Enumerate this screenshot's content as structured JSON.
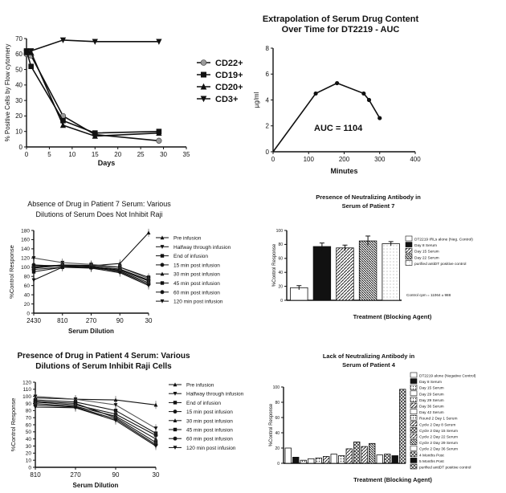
{
  "chart_data": [
    {
      "id": "flow",
      "type": "line",
      "title": "",
      "xlabel": "Days",
      "ylabel": "% Positive Cells by Flow cytomery",
      "xlim": [
        0,
        35
      ],
      "ylim": [
        0,
        70
      ],
      "xticks": [
        "0",
        "5",
        "10",
        "15",
        "20",
        "25",
        "30",
        "35"
      ],
      "yticks": [
        "0",
        "10",
        "20",
        "30",
        "40",
        "50",
        "60",
        "70"
      ],
      "series": [
        {
          "name": "CD22+",
          "marker": "circle",
          "color": "#9a9a9a",
          "x": [
            0,
            1,
            8,
            15,
            29
          ],
          "y": [
            60,
            59,
            20,
            8,
            4
          ]
        },
        {
          "name": "CD19+",
          "marker": "square",
          "color": "#111111",
          "x": [
            0,
            1,
            8,
            15,
            29
          ],
          "y": [
            62,
            52,
            17,
            9,
            10
          ]
        },
        {
          "name": "CD20+",
          "marker": "triangle-up",
          "color": "#111111",
          "x": [
            0,
            1,
            8,
            15,
            29
          ],
          "y": [
            61,
            61,
            14,
            7,
            9
          ]
        },
        {
          "name": "CD3+",
          "marker": "triangle-down",
          "color": "#111111",
          "x": [
            0,
            1,
            8,
            15,
            29
          ],
          "y": [
            61,
            62,
            69,
            68,
            68
          ]
        }
      ]
    },
    {
      "id": "auc",
      "type": "line",
      "title": "Extrapolation of Serum Drug Content Over Time for DT2219 - AUC",
      "title_lines": [
        "Extrapolation of Serum Drug Content",
        "Over Time for DT2219 - AUC"
      ],
      "xlabel": "Minutes",
      "ylabel": "µg/ml",
      "xlim": [
        0,
        400
      ],
      "ylim": [
        0,
        8
      ],
      "xticks": [
        "0",
        "100",
        "200",
        "300",
        "400"
      ],
      "yticks": [
        "0",
        "2",
        "4",
        "6",
        "8"
      ],
      "annotation": "AUC = 1104",
      "series": [
        {
          "name": "",
          "x": [
            0,
            120,
            180,
            255,
            270,
            300
          ],
          "y": [
            0,
            4.5,
            5.3,
            4.5,
            4.0,
            2.6
          ]
        }
      ]
    },
    {
      "id": "patient7_dilution",
      "type": "line",
      "title": "Absence of Drug in Patient 7 Serum: Various Dilutions of Serum Does Not Inhibit Raji",
      "title_lines": [
        "Absence of Drug in Patient 7 Serum: Various",
        "Dilutions of Serum Does Not Inhibit Raji"
      ],
      "xlabel": "Serum Dilution",
      "ylabel": "%Control Response",
      "categories": [
        "2430",
        "810",
        "270",
        "90",
        "30"
      ],
      "ylim": [
        0,
        180
      ],
      "yticks": [
        "0",
        "20",
        "40",
        "60",
        "80",
        "100",
        "120",
        "140",
        "160",
        "180"
      ],
      "series": [
        {
          "name": "Pre infusion",
          "values": [
            103,
            104,
            103,
            108,
            175
          ]
        },
        {
          "name": "Halfway through infusion",
          "values": [
            120,
            110,
            106,
            100,
            75
          ]
        },
        {
          "name": "End of infusion",
          "values": [
            100,
            105,
            104,
            100,
            78
          ]
        },
        {
          "name": "15 min post infusion",
          "values": [
            95,
            100,
            102,
            96,
            72
          ]
        },
        {
          "name": "30 min post infusion",
          "values": [
            98,
            104,
            100,
            94,
            70
          ]
        },
        {
          "name": "45 min post infusion",
          "values": [
            90,
            100,
            99,
            92,
            66
          ]
        },
        {
          "name": "60 min post infusion",
          "values": [
            105,
            102,
            101,
            90,
            63
          ]
        },
        {
          "name": "120 min post infusion",
          "values": [
            72,
            100,
            98,
            88,
            60
          ]
        }
      ]
    },
    {
      "id": "patient7_antibody",
      "type": "bar",
      "title": "Presence of Neutralizing Antibody in Serum of Patient 7",
      "title_lines": [
        "Presence of Neutralizing Antibody in",
        "Serum of Patient 7"
      ],
      "xlabel": "Treatment (Blocking Agent)",
      "ylabel": "%Control Response",
      "ylim": [
        0,
        100
      ],
      "yticks": [
        "0",
        "20",
        "40",
        "60",
        "80",
        "100"
      ],
      "categories": [
        "DT2219 IRLs alone (Neg. Control)",
        "Day 8 Serum",
        "Day 15 Serum",
        "Day 22 Serum",
        "purified antiDT positive control"
      ],
      "values": [
        18,
        77,
        75,
        85,
        81
      ],
      "errors": [
        3,
        5,
        4,
        7,
        3
      ],
      "patterns": [
        "white",
        "black",
        "hatch",
        "hatch-dense",
        "white-dots"
      ],
      "note": "Control cpm = 11064 ± 988"
    },
    {
      "id": "patient4_dilution",
      "type": "line",
      "title": "Presence of Drug in Patient 4 Serum: Various Dilutions of Serum Inhibit Raji Cells",
      "title_lines": [
        "Presence of Drug in Patient 4 Serum: Various",
        "Dilutions of Serum Inhibit Raji Cells"
      ],
      "xlabel": "Serum Dilution",
      "ylabel": "%Control Response",
      "categories": [
        "810",
        "270",
        "90",
        "30"
      ],
      "ylim": [
        0,
        120
      ],
      "yticks": [
        "0",
        "10",
        "20",
        "30",
        "40",
        "50",
        "60",
        "70",
        "80",
        "90",
        "100",
        "110",
        "120"
      ],
      "series": [
        {
          "name": "Pre infusion",
          "values": [
            98,
            96,
            95,
            88
          ]
        },
        {
          "name": "Halfway through infusion",
          "values": [
            100,
            96,
            88,
            55
          ]
        },
        {
          "name": "End of infusion",
          "values": [
            95,
            92,
            80,
            48
          ]
        },
        {
          "name": "15 min post infusion",
          "values": [
            92,
            88,
            75,
            45
          ]
        },
        {
          "name": "30 min post infusion",
          "values": [
            90,
            86,
            72,
            40
          ]
        },
        {
          "name": "45 min post infusion",
          "values": [
            93,
            90,
            70,
            35
          ]
        },
        {
          "name": "60 min post infusion",
          "values": [
            88,
            85,
            68,
            32
          ]
        },
        {
          "name": "120 min post infusion",
          "values": [
            85,
            84,
            66,
            30
          ]
        }
      ]
    },
    {
      "id": "patient4_antibody",
      "type": "bar",
      "title": "Lack of Neutralizing Antibody in Serum of Patient 4",
      "title_lines": [
        "Lack of Neutralizing Antibody in",
        "Serum of Patient 4"
      ],
      "xlabel": "Treatment (Blocking Agent)",
      "ylabel": "%Control Response",
      "ylim": [
        0,
        100
      ],
      "yticks": [
        "0",
        "20",
        "40",
        "60",
        "80",
        "100"
      ],
      "categories": [
        "DT2219 alone (Negative Control)",
        "Day 8 Serum",
        "Day 15 Serum",
        "Day 29 Serum",
        "Day 29 Serum",
        "Day 36 Serum",
        "Day 42 Serum",
        "Round 2 Day 1 Serum",
        "Cycle 2 Day 8 Serum",
        "Cycle 2 Day 15 Serum",
        "Cycle 2 Day 22 Serum",
        "Cycle 2 Day 29 Serum",
        "Cycle 2 Day 36 Serum",
        "4 Months Post",
        "5 Months Post",
        "purified antiDT positive control"
      ],
      "values": [
        20,
        8,
        4,
        6,
        7,
        9,
        12,
        10,
        19,
        28,
        22,
        26,
        11,
        12,
        10,
        97
      ],
      "patterns": [
        "white",
        "black",
        "dots",
        "white",
        "dots",
        "hatch",
        "white",
        "dots",
        "hatch",
        "grid",
        "hatch",
        "hatch-dense",
        "white",
        "grid",
        "black",
        "grid"
      ]
    }
  ]
}
